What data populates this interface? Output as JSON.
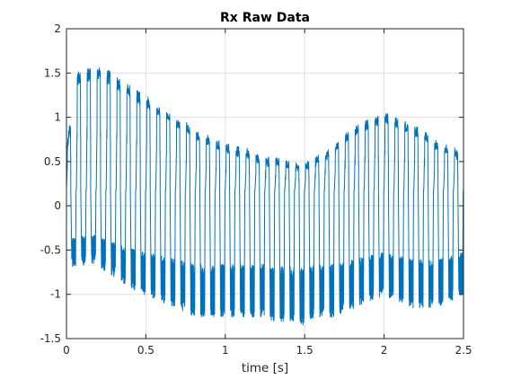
{
  "chart_data": {
    "type": "line",
    "title": "Rx Raw Data",
    "xlabel": "time [s]",
    "ylabel": "",
    "xlim": [
      0,
      2.5
    ],
    "ylim": [
      -1.5,
      2
    ],
    "xticks": [
      0,
      0.5,
      1,
      1.5,
      2,
      2.5
    ],
    "xtick_labels": [
      "0",
      "0.5",
      "1",
      "1.5",
      "2",
      "2.5"
    ],
    "yticks": [
      -1.5,
      -1,
      -0.5,
      0,
      0.5,
      1,
      1.5,
      2
    ],
    "ytick_labels": [
      "-1.5",
      "-1",
      "-0.5",
      "0",
      "0.5",
      "1",
      "1.5",
      "2"
    ],
    "grid": true,
    "legend": "none",
    "series": [
      {
        "color": "#0072BD",
        "rest_level": 0.18,
        "pulse_period": 0.0625,
        "x": [
          0,
          0.0625,
          0.125,
          0.1875,
          0.25,
          0.3125,
          0.375,
          0.4375,
          0.5,
          0.5625,
          0.625,
          0.6875,
          0.75,
          0.8125,
          0.875,
          0.9375,
          1.0,
          1.0625,
          1.125,
          1.1875,
          1.25,
          1.3125,
          1.375,
          1.4375,
          1.5,
          1.5625,
          1.625,
          1.6875,
          1.75,
          1.8125,
          1.875,
          1.9375,
          2.0,
          2.0625,
          2.125,
          2.1875,
          2.25,
          2.3125,
          2.375,
          2.4375,
          2.5
        ],
        "upper_envelope": [
          0.6,
          1.45,
          1.5,
          1.5,
          1.5,
          1.4,
          1.35,
          1.25,
          1.2,
          1.1,
          1.05,
          0.95,
          0.9,
          0.8,
          0.75,
          0.7,
          0.65,
          0.62,
          0.6,
          0.55,
          0.5,
          0.5,
          0.45,
          0.45,
          0.45,
          0.5,
          0.55,
          0.65,
          0.75,
          0.85,
          0.9,
          0.95,
          1.0,
          0.95,
          0.9,
          0.85,
          0.8,
          0.7,
          0.65,
          0.6,
          0.55
        ],
        "lower_envelope": [
          -0.6,
          -0.65,
          -0.6,
          -0.6,
          -0.7,
          -0.75,
          -0.85,
          -0.9,
          -0.95,
          -1.0,
          -1.05,
          -1.1,
          -1.15,
          -1.2,
          -1.2,
          -1.2,
          -1.2,
          -1.2,
          -1.2,
          -1.2,
          -1.2,
          -1.25,
          -1.25,
          -1.25,
          -1.3,
          -1.2,
          -1.2,
          -1.2,
          -1.15,
          -1.1,
          -1.05,
          -1.0,
          -0.95,
          -1.0,
          -1.05,
          -1.1,
          -1.1,
          -1.1,
          -1.05,
          -1.0,
          -0.95
        ]
      }
    ]
  }
}
